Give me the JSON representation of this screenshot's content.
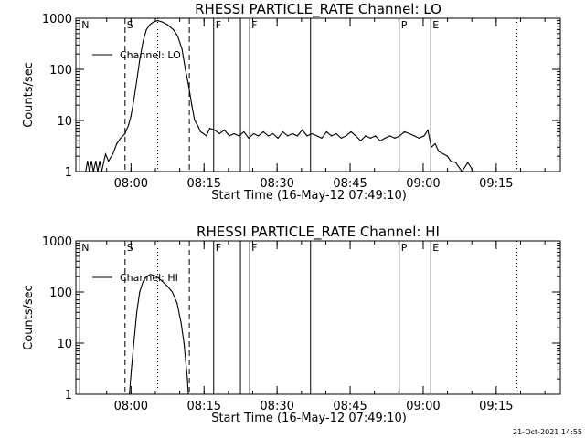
{
  "footer_timestamp": "21-Oct-2021 14:55",
  "chart_data": [
    {
      "type": "line",
      "title": "RHESSI PARTICLE_RATE Channel: LO",
      "xlabel": "Start Time (16-May-12 07:49:10)",
      "ylabel": "Counts/sec",
      "y_scale": "log",
      "ylim": [
        1,
        1000
      ],
      "y_ticks": [
        1,
        10,
        100,
        1000
      ],
      "y_tick_labels": [
        "1",
        "10",
        "100",
        "1000"
      ],
      "xlim_min": [
        -0.5,
        99
      ],
      "x_ticks_min": [
        10.83,
        25.83,
        40.83,
        55.83,
        70.83,
        85.83
      ],
      "x_tick_labels": [
        "08:00",
        "08:15",
        "08:30",
        "08:45",
        "09:00",
        "09:15"
      ],
      "legend": "Channel: LO",
      "legend_position": "top-left",
      "markers": [
        {
          "x_min": 0.3,
          "label": "N",
          "style": "solid"
        },
        {
          "x_min": 9.6,
          "label": "S",
          "style": "dashed"
        },
        {
          "x_min": 16.3,
          "label": "",
          "style": "dotted"
        },
        {
          "x_min": 22.8,
          "label": "",
          "style": "dashed"
        },
        {
          "x_min": 27.8,
          "label": "F",
          "style": "solid"
        },
        {
          "x_min": 33.3,
          "label": "",
          "style": "solid"
        },
        {
          "x_min": 35.2,
          "label": "F",
          "style": "solid"
        },
        {
          "x_min": 47.7,
          "label": "",
          "style": "solid"
        },
        {
          "x_min": 65.9,
          "label": "P",
          "style": "solid"
        },
        {
          "x_min": 72.4,
          "label": "E",
          "style": "solid"
        },
        {
          "x_min": 90.1,
          "label": "",
          "style": "dotted"
        }
      ],
      "x": [
        1.5,
        1.9,
        2.3,
        2.7,
        3.1,
        3.6,
        4.0,
        4.4,
        4.8,
        5.6,
        6.2,
        7.1,
        7.9,
        8.7,
        9.6,
        10.3,
        10.8,
        11.4,
        12.0,
        12.6,
        13.3,
        14.0,
        14.7,
        15.5,
        16.3,
        17.2,
        18.3,
        19.5,
        20.4,
        21.3,
        22.0,
        22.7,
        23.3,
        23.9,
        24.5,
        25.1,
        25.7,
        26.3,
        27.0,
        28.0,
        29.0,
        30.0,
        31.0,
        32.0,
        33.0,
        34.0,
        35.0,
        36.0,
        37.0,
        38.0,
        39.0,
        40.0,
        41.0,
        42.0,
        43.0,
        44.0,
        45.0,
        46.0,
        47.0,
        48.0,
        49.0,
        50.0,
        51.0,
        52.0,
        53.0,
        54.0,
        55.0,
        56.0,
        57.0,
        58.0,
        59.0,
        60.0,
        61.0,
        62.0,
        63.0,
        64.0,
        65.0,
        66.0,
        67.0,
        68.0,
        69.0,
        70.0,
        71.0,
        71.8,
        72.5,
        73.3,
        74.0,
        75.0,
        75.8,
        76.5,
        77.5,
        78.8,
        80.0,
        81.2,
        82.3
      ],
      "values": [
        1,
        1.6,
        1,
        1.6,
        1,
        1.6,
        1,
        1.6,
        1,
        2.2,
        1.6,
        2.2,
        3.5,
        4.5,
        5.5,
        8,
        12,
        25,
        60,
        150,
        350,
        600,
        750,
        850,
        900,
        850,
        750,
        600,
        450,
        250,
        100,
        45,
        20,
        10,
        8,
        6,
        5.5,
        5,
        7,
        6.5,
        5.5,
        6.5,
        5,
        5.5,
        5,
        6,
        4.5,
        5.5,
        5,
        6,
        5,
        5.5,
        4.5,
        6,
        5,
        5.5,
        5,
        6.5,
        5,
        5.5,
        5,
        4.5,
        6,
        5,
        5.5,
        4.5,
        5,
        6,
        5,
        4,
        5,
        4.5,
        5,
        4,
        4.5,
        5,
        4.5,
        5,
        6,
        5.5,
        5,
        4.5,
        5,
        6.5,
        3,
        3.5,
        2.5,
        2.2,
        2,
        1.6,
        1.5,
        1,
        1.5,
        1,
        1
      ]
    },
    {
      "type": "line",
      "title": "RHESSI PARTICLE_RATE Channel: HI",
      "xlabel": "Start Time (16-May-12 07:49:10)",
      "ylabel": "Counts/sec",
      "y_scale": "log",
      "ylim": [
        1,
        1000
      ],
      "y_ticks": [
        1,
        10,
        100,
        1000
      ],
      "y_tick_labels": [
        "1",
        "10",
        "100",
        "1000"
      ],
      "xlim_min": [
        -0.5,
        99
      ],
      "x_ticks_min": [
        10.83,
        25.83,
        40.83,
        55.83,
        70.83,
        85.83
      ],
      "x_tick_labels": [
        "08:00",
        "08:15",
        "08:30",
        "08:45",
        "09:00",
        "09:15"
      ],
      "legend": "Channel: HI",
      "legend_position": "top-left",
      "markers": [
        {
          "x_min": 0.3,
          "label": "N",
          "style": "solid"
        },
        {
          "x_min": 9.6,
          "label": "S",
          "style": "dashed"
        },
        {
          "x_min": 16.3,
          "label": "",
          "style": "dotted"
        },
        {
          "x_min": 22.8,
          "label": "",
          "style": "dashed"
        },
        {
          "x_min": 27.8,
          "label": "F",
          "style": "solid"
        },
        {
          "x_min": 33.3,
          "label": "",
          "style": "solid"
        },
        {
          "x_min": 35.2,
          "label": "F",
          "style": "solid"
        },
        {
          "x_min": 47.7,
          "label": "",
          "style": "solid"
        },
        {
          "x_min": 65.9,
          "label": "P",
          "style": "solid"
        },
        {
          "x_min": 72.4,
          "label": "E",
          "style": "solid"
        },
        {
          "x_min": 90.1,
          "label": "",
          "style": "dotted"
        }
      ],
      "x": [
        10.5,
        10.9,
        11.4,
        12.0,
        12.6,
        13.3,
        14.0,
        14.8,
        15.6,
        16.4,
        17.3,
        18.3,
        19.3,
        20.3,
        21.1,
        21.7,
        22.1,
        22.4,
        22.6
      ],
      "values": [
        1,
        3,
        10,
        40,
        100,
        160,
        200,
        220,
        210,
        190,
        160,
        130,
        100,
        60,
        25,
        10,
        4,
        2,
        1
      ]
    }
  ]
}
